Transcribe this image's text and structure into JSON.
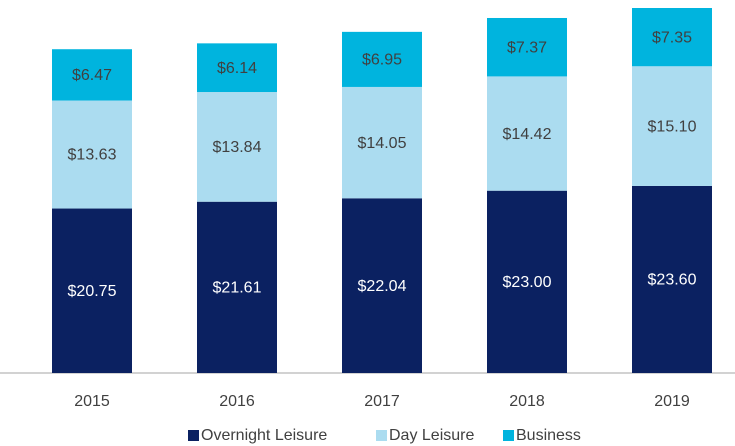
{
  "chart_data": {
    "type": "stacked-bar",
    "categories": [
      "2015",
      "2016",
      "2017",
      "2018",
      "2019"
    ],
    "series": [
      {
        "name": "Overnight Leisure",
        "color": "#0b2161",
        "values": [
          20.75,
          21.61,
          22.04,
          23.0,
          23.6
        ],
        "value_labels": [
          "$20.75",
          "$21.61",
          "$22.04",
          "$23.00",
          "$23.60"
        ]
      },
      {
        "name": "Day Leisure",
        "color": "#abdcf0",
        "values": [
          13.63,
          13.84,
          14.05,
          14.42,
          15.1
        ],
        "value_labels": [
          "$13.63",
          "$13.84",
          "$14.05",
          "$14.42",
          "$15.10"
        ]
      },
      {
        "name": "Business",
        "color": "#00b4de",
        "values": [
          6.47,
          6.14,
          6.95,
          7.37,
          7.35
        ],
        "value_labels": [
          "$6.47",
          "$6.14",
          "$6.95",
          "$7.37",
          "$7.35"
        ]
      }
    ]
  }
}
